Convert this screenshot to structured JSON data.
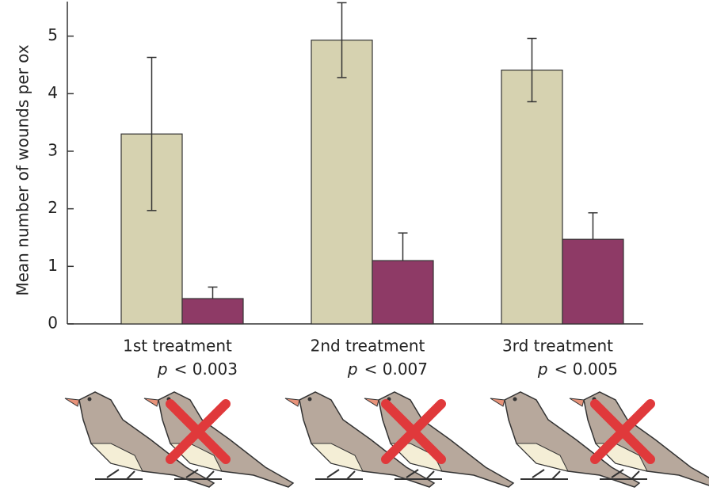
{
  "chart_data": {
    "type": "bar",
    "y_label": "Mean number of wounds per ox",
    "categories": [
      "1st treatment",
      "2nd treatment",
      "3rd treatment"
    ],
    "p_labels": [
      {
        "symbol": "p",
        "text": "< 0.003"
      },
      {
        "symbol": "p",
        "text": "< 0.007"
      },
      {
        "symbol": "p",
        "text": "< 0.005"
      }
    ],
    "series": [
      {
        "color": "#d6d2b0",
        "values": [
          3.3,
          4.93,
          4.41
        ],
        "errors": [
          1.33,
          0.65,
          0.55
        ],
        "error_direction": "both"
      },
      {
        "color": "#8e3a66",
        "values": [
          0.44,
          1.1,
          1.47
        ],
        "errors": [
          0.2,
          0.48,
          0.46
        ],
        "error_direction": "up"
      }
    ],
    "ylim": [
      0,
      5.6
    ],
    "yticks": [
      0,
      1,
      2,
      3,
      4,
      5
    ]
  }
}
